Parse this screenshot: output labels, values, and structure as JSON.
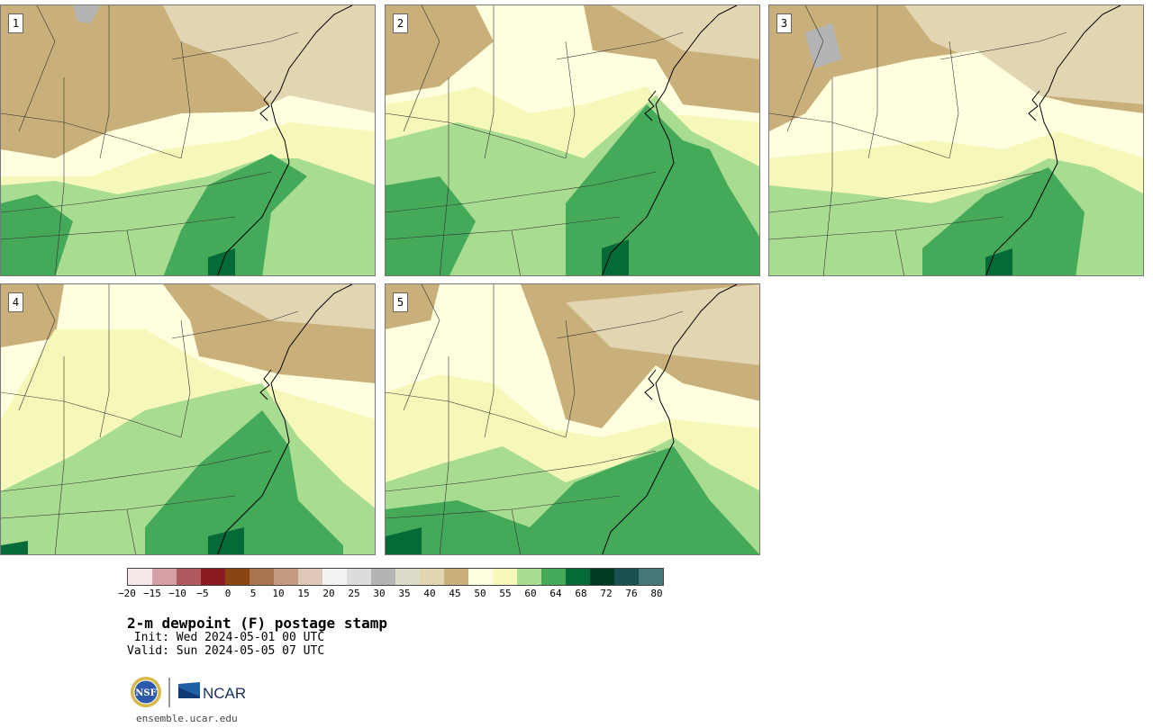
{
  "panels": [
    {
      "number": "1",
      "pattern": "mostly-moist-south"
    },
    {
      "number": "2",
      "pattern": "moist-east"
    },
    {
      "number": "3",
      "pattern": "dry-north"
    },
    {
      "number": "4",
      "pattern": "moist-south"
    },
    {
      "number": "5",
      "pattern": "dry-northeast"
    }
  ],
  "colorbar": {
    "colors": [
      "#f5e8e8",
      "#d4a0a6",
      "#b05a60",
      "#8b1a22",
      "#8b4513",
      "#a87350",
      "#c49a80",
      "#e0c8b8",
      "#f2f2f2",
      "#dcdcdc",
      "#b4b4b4",
      "#dcdcc8",
      "#e1d5b2",
      "#c9b07a",
      "#ffffe0",
      "#f5f8b8",
      "#a8dc90",
      "#44aa5a",
      "#046b38",
      "#003a20",
      "#1a5050",
      "#467777"
    ],
    "tick_labels": [
      "−20",
      "−15",
      "−10",
      "−5",
      "0",
      "5",
      "10",
      "15",
      "20",
      "25",
      "30",
      "35",
      "40",
      "45",
      "50",
      "55",
      "60",
      "64",
      "68",
      "72",
      "76",
      "80"
    ]
  },
  "title": "2-m dewpoint (F) postage stamp",
  "init": " Init: Wed 2024-05-01 00 UTC",
  "valid": "Valid: Sun 2024-05-05 07 UTC",
  "logo": {
    "nsf": "NSF",
    "ncar": "NCAR"
  },
  "url": "ensemble.ucar.edu"
}
